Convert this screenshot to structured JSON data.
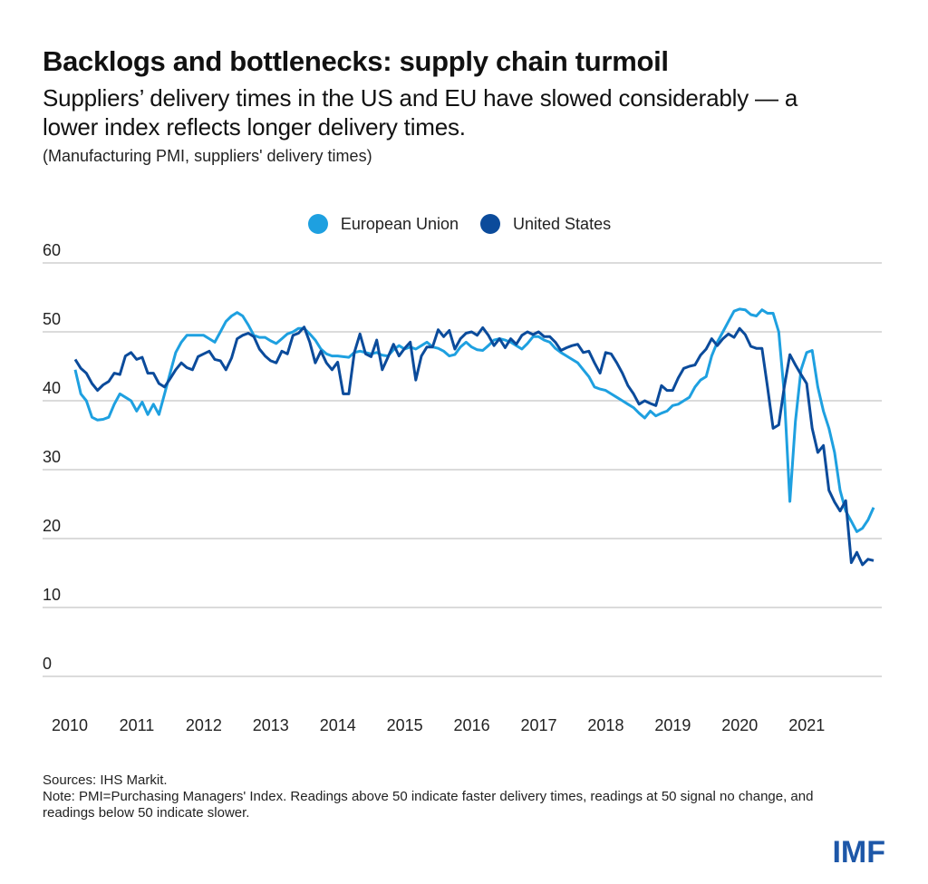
{
  "header": {
    "title": "Backlogs and bottlenecks: supply chain turmoil",
    "subtitle": "Suppliers’ delivery times in the US and EU have slowed considerably — a lower index reflects longer delivery times.",
    "units": "(Manufacturing PMI, suppliers' delivery times)"
  },
  "footer": {
    "sources": "Sources: IHS Markit.",
    "note": "Note: PMI=Purchasing Managers' Index. Readings above 50 indicate faster delivery times, readings at 50 signal no change, and readings below 50 indicate slower."
  },
  "logo": "IMF",
  "colors": {
    "eu": "#1ea0e0",
    "us": "#0b4b9b",
    "grid": "#cfcfcf",
    "logo": "#1d57a8"
  },
  "chart_data": {
    "type": "line",
    "title": "Backlogs and bottlenecks: supply chain turmoil",
    "xlabel": "",
    "ylabel": "",
    "ylim": [
      0,
      60
    ],
    "yticks": [
      0,
      10,
      20,
      30,
      40,
      50,
      60
    ],
    "xlim": [
      "2010-01",
      "2021-12"
    ],
    "x_tick_labels": [
      "2010",
      "2011",
      "2012",
      "2013",
      "2014",
      "2015",
      "2016",
      "2017",
      "2018",
      "2019",
      "2020",
      "2021"
    ],
    "grid": true,
    "legend": "top-center",
    "frequency": "monthly",
    "x_start": "2010-01",
    "series": [
      {
        "name": "European Union",
        "color": "#1ea0e0",
        "values": [
          44.5,
          41.0,
          40.0,
          37.6,
          37.2,
          37.3,
          37.6,
          39.5,
          41.0,
          40.5,
          40.0,
          38.5,
          39.8,
          38.0,
          39.5,
          38.0,
          41.0,
          44.0,
          47.0,
          48.5,
          49.5,
          49.5,
          49.5,
          49.5,
          49.0,
          48.5,
          50.0,
          51.5,
          52.3,
          52.8,
          52.3,
          51.0,
          49.5,
          49.2,
          49.2,
          48.7,
          48.3,
          49.0,
          49.7,
          50.0,
          50.5,
          50.5,
          49.7,
          48.8,
          47.5,
          46.8,
          46.5,
          46.5,
          46.4,
          46.3,
          47.0,
          47.2,
          47.0,
          46.8,
          47.0,
          46.6,
          46.5,
          47.4,
          48.0,
          47.5,
          47.8,
          47.5,
          48.0,
          48.5,
          47.8,
          47.6,
          47.2,
          46.5,
          46.7,
          47.8,
          48.5,
          47.8,
          47.4,
          47.3,
          48.0,
          48.8,
          49.0,
          48.8,
          48.5,
          48.0,
          47.5,
          48.3,
          49.3,
          49.3,
          48.8,
          48.5,
          47.6,
          47.0,
          46.5,
          46.0,
          45.5,
          44.5,
          43.5,
          42.0,
          41.7,
          41.5,
          41.0,
          40.5,
          40.0,
          39.5,
          39.0,
          38.2,
          37.5,
          38.5,
          37.8,
          38.2,
          38.5,
          39.3,
          39.5,
          40.0,
          40.5,
          42.0,
          43.0,
          43.5,
          46.5,
          48.5,
          50.0,
          51.5,
          53.0,
          53.3,
          53.2,
          52.5,
          52.3,
          53.2,
          52.7,
          52.7,
          50.0,
          41.0,
          25.4,
          37.0,
          44.5,
          47.0,
          47.3,
          42.0,
          38.5,
          36.0,
          32.5,
          27.0,
          24.0,
          22.5,
          21.0,
          21.5,
          22.7,
          24.5
        ]
      },
      {
        "name": "United States",
        "color": "#0b4b9b",
        "values": [
          46.0,
          44.7,
          44.0,
          42.5,
          41.5,
          42.3,
          42.8,
          44.0,
          43.8,
          46.5,
          47.0,
          46.0,
          46.3,
          44.0,
          44.0,
          42.5,
          42.0,
          43.2,
          44.5,
          45.5,
          44.8,
          44.5,
          46.4,
          46.8,
          47.2,
          46.0,
          45.8,
          44.5,
          46.2,
          49.0,
          49.5,
          49.8,
          49.3,
          47.5,
          46.5,
          45.8,
          45.5,
          47.2,
          46.8,
          49.5,
          49.8,
          50.7,
          48.5,
          45.5,
          47.2,
          45.5,
          44.5,
          45.6,
          41.0,
          41.0,
          47.0,
          49.7,
          46.8,
          46.4,
          48.8,
          44.5,
          46.3,
          48.2,
          46.5,
          47.6,
          48.5,
          43.0,
          46.5,
          47.8,
          47.8,
          50.3,
          49.3,
          50.2,
          47.5,
          49.0,
          49.8,
          50.0,
          49.5,
          50.6,
          49.5,
          48.0,
          49.0,
          47.7,
          49.0,
          48.2,
          49.5,
          50.0,
          49.6,
          50.0,
          49.3,
          49.3,
          48.5,
          47.3,
          47.7,
          48.0,
          48.2,
          47.0,
          47.2,
          45.5,
          44.0,
          47.0,
          46.8,
          45.5,
          44.0,
          42.2,
          41.0,
          39.5,
          40.0,
          39.6,
          39.3,
          42.2,
          41.5,
          41.5,
          43.3,
          44.7,
          45.0,
          45.2,
          46.6,
          47.5,
          49.0,
          48.0,
          49.0,
          49.7,
          49.2,
          50.5,
          49.6,
          47.9,
          47.6,
          47.6,
          42.0,
          36.0,
          36.5,
          42.0,
          46.7,
          45.2,
          43.8,
          42.5,
          36.0,
          32.5,
          33.5,
          27.0,
          25.3,
          24.0,
          25.5,
          16.5,
          18.0,
          16.2,
          17.0,
          16.8
        ]
      }
    ]
  }
}
